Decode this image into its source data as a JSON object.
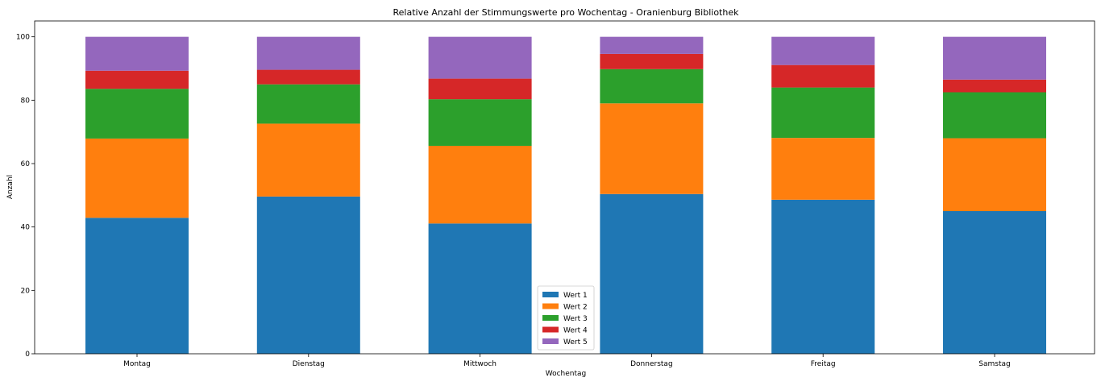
{
  "chart_data": {
    "type": "bar",
    "stacked": true,
    "title": "Relative Anzahl der Stimmungswerte pro Wochentag - Oranienburg Bibliothek",
    "xlabel": "Wochentag",
    "ylabel": "Anzahl",
    "ylim": [
      0,
      105
    ],
    "yticks": [
      0,
      20,
      40,
      60,
      80,
      100
    ],
    "categories": [
      "Montag",
      "Dienstag",
      "Mittwoch",
      "Donnerstag",
      "Freitag",
      "Samstag"
    ],
    "series": [
      {
        "name": "Wert 1",
        "color": "#1f77b4",
        "values": [
          42.9,
          49.6,
          41.1,
          50.4,
          48.6,
          45.0
        ]
      },
      {
        "name": "Wert 2",
        "color": "#ff7f0e",
        "values": [
          25.0,
          23.0,
          24.5,
          28.6,
          19.5,
          23.0
        ]
      },
      {
        "name": "Wert 3",
        "color": "#2ca02c",
        "values": [
          15.7,
          12.4,
          14.7,
          10.8,
          15.9,
          14.5
        ]
      },
      {
        "name": "Wert 4",
        "color": "#d62728",
        "values": [
          5.7,
          4.6,
          6.5,
          4.8,
          7.1,
          4.0
        ]
      },
      {
        "name": "Wert 5",
        "color": "#9467bd",
        "values": [
          10.7,
          10.4,
          13.2,
          5.4,
          8.9,
          13.5
        ]
      }
    ],
    "legend_position": "bottom-center"
  }
}
